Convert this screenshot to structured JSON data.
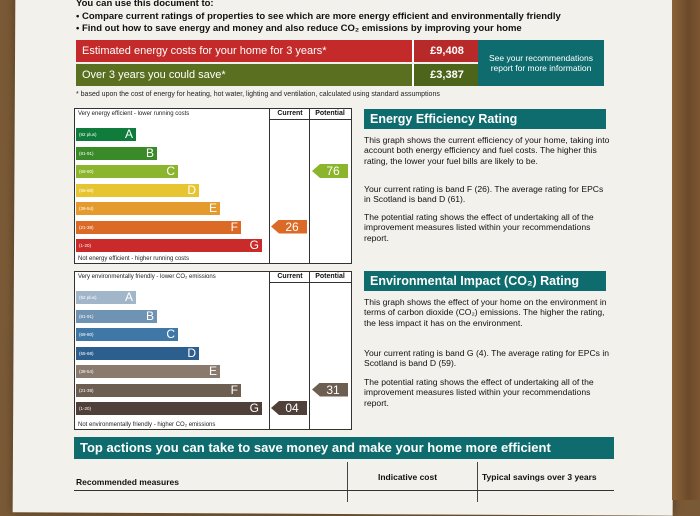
{
  "intro": "You can use this document to:",
  "bullets": [
    "Compare current ratings of properties to see which are more energy efficient and environmentally friendly",
    "Find out how to save energy and money and also reduce CO₂ emissions by improving your home"
  ],
  "costs": {
    "row1_label": "Estimated energy costs for your home for 3 years*",
    "row1_value": "£9,408",
    "row2_label": "Over 3 years you could save*",
    "row2_value": "£3,387",
    "see_box": "See your recommendations report for more information",
    "footnote": "* based upon the cost of energy for heating, hot water, lighting and ventilation, calculated using standard assumptions"
  },
  "energy_chart": {
    "top_note": "Very energy efficient - lower running costs",
    "bottom_note": "Not energy efficient - higher running costs",
    "current_label": "Current",
    "potential_label": "Potential",
    "bands": [
      {
        "range": "(92 plus)",
        "letter": "A",
        "color": "#0f7c3b"
      },
      {
        "range": "(81-91)",
        "letter": "B",
        "color": "#3a8a2a"
      },
      {
        "range": "(69-80)",
        "letter": "C",
        "color": "#8bb52c"
      },
      {
        "range": "(55-68)",
        "letter": "D",
        "color": "#e6c531"
      },
      {
        "range": "(39-54)",
        "letter": "E",
        "color": "#e49a2c"
      },
      {
        "range": "(21-38)",
        "letter": "F",
        "color": "#db6a26"
      },
      {
        "range": "(1-20)",
        "letter": "G",
        "color": "#c92a2a"
      }
    ],
    "current_value": "26",
    "current_color": "#db6a26",
    "potential_value": "76",
    "potential_color": "#8bb52c"
  },
  "energy_text": {
    "heading": "Energy Efficiency Rating",
    "p1": "This graph shows the current efficiency of your home, taking into account both energy efficiency and fuel costs. The higher this rating, the lower your fuel bills are likely to be.",
    "p2": "Your current rating is band F (26). The average rating for EPCs in Scotland is band D (61).",
    "p3": "The potential rating shows the effect of undertaking all of the improvement measures listed within your recommendations report."
  },
  "env_chart": {
    "top_note": "Very environmentally friendly - lower CO₂ emissions",
    "bottom_note": "Not environmentally friendly - higher CO₂ emissions",
    "current_label": "Current",
    "potential_label": "Potential",
    "bands": [
      {
        "range": "(92 plus)",
        "letter": "A",
        "color": "#a1b7c9"
      },
      {
        "range": "(81-91)",
        "letter": "B",
        "color": "#6f93b3"
      },
      {
        "range": "(69-80)",
        "letter": "C",
        "color": "#3f78a6"
      },
      {
        "range": "(55-68)",
        "letter": "D",
        "color": "#2c5f8e"
      },
      {
        "range": "(39-54)",
        "letter": "E",
        "color": "#8a7a6d"
      },
      {
        "range": "(21-38)",
        "letter": "F",
        "color": "#6d5e52"
      },
      {
        "range": "(1-20)",
        "letter": "G",
        "color": "#4f4139"
      }
    ],
    "current_value": "04",
    "current_color": "#4f4139",
    "potential_value": "31",
    "potential_color": "#6d5e52"
  },
  "env_text": {
    "heading": "Environmental Impact (CO₂) Rating",
    "p1": "This graph shows the effect of your home on the environment in terms of carbon dioxide (CO₂) emissions. The higher the rating, the less impact it has on the environment.",
    "p2": "Your current rating is band G (4). The average rating for EPCs in Scotland is band D (59).",
    "p3": "The potential rating shows the effect of undertaking all of the improvement measures listed within your recommendations report."
  },
  "actions": {
    "heading": "Top actions you can take to save money and make your home more efficient",
    "col1": "Recommended measures",
    "col2": "Indicative cost",
    "col3": "Typical savings over 3 years"
  }
}
